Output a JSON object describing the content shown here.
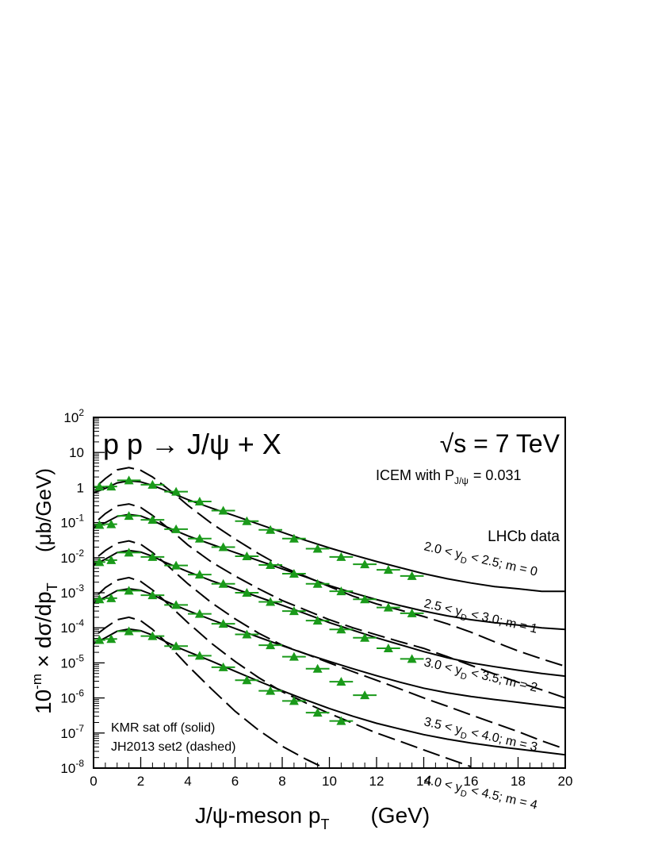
{
  "chart_data": {
    "type": "line",
    "title": "p p → J/ψ + X",
    "energy_label": "√s = 7 TeV",
    "model_label": "ICEM with P",
    "model_sub": "J/ψ",
    "model_value": "= 0.031",
    "data_label": "LHCb data",
    "xlabel": "J/ψ-meson  p",
    "xlabel_sub": "T",
    "xlabel_unit": "(GeV)",
    "ylabel": "10",
    "ylabel_sup": "-m",
    "ylabel_main": " × dσ/dp",
    "ylabel_sub": "T",
    "ylabel_unit": "(μb/GeV)",
    "line_legend": [
      "KMR sat off (solid)",
      "JH2013 set2 (dashed)"
    ],
    "xlim": [
      0,
      20
    ],
    "ylim_log10": [
      -8,
      2
    ],
    "log_y": true,
    "x_ticks": [
      0,
      2,
      4,
      6,
      8,
      10,
      12,
      14,
      16,
      18,
      20
    ],
    "y_tick_labels": [
      {
        "v": 2,
        "main": "10",
        "sup": "2"
      },
      {
        "v": 1,
        "main": "10",
        "sup": ""
      },
      {
        "v": 0,
        "main": "1",
        "sup": ""
      },
      {
        "v": -1,
        "main": "10",
        "sup": "-1"
      },
      {
        "v": -2,
        "main": "10",
        "sup": "-2"
      },
      {
        "v": -3,
        "main": "10",
        "sup": "-3"
      },
      {
        "v": -4,
        "main": "10",
        "sup": "-4"
      },
      {
        "v": -5,
        "main": "10",
        "sup": "-5"
      },
      {
        "v": -6,
        "main": "10",
        "sup": "-6"
      },
      {
        "v": -7,
        "main": "10",
        "sup": "-7"
      },
      {
        "v": -8,
        "main": "10",
        "sup": "-8"
      }
    ],
    "data_points_x": [
      0.25,
      0.75,
      1.5,
      2.5,
      3.5,
      4.5,
      5.5,
      6.5,
      7.5,
      8.5,
      9.5,
      10.5,
      11.5,
      12.5,
      13.5
    ],
    "series": [
      {
        "range_label": {
          "a": "2.0 < y",
          "sub": "D",
          "b": " < 2.5; m = 0"
        },
        "data": [
          1.06,
          1.07,
          1.6,
          1.2,
          0.76,
          0.4,
          0.22,
          0.11,
          0.062,
          0.035,
          0.018,
          0.0105,
          0.0065,
          0.0045,
          0.003
        ],
        "solid": [
          [
            0,
            0.7
          ],
          [
            0.5,
            0.95
          ],
          [
            1,
            1.35
          ],
          [
            1.5,
            1.55
          ],
          [
            2,
            1.45
          ],
          [
            2.5,
            1.15
          ],
          [
            3,
            0.85
          ],
          [
            3.5,
            0.62
          ],
          [
            4,
            0.45
          ],
          [
            5,
            0.26
          ],
          [
            6,
            0.155
          ],
          [
            7,
            0.09
          ],
          [
            8,
            0.053
          ],
          [
            9,
            0.031
          ],
          [
            10,
            0.019
          ],
          [
            11,
            0.012
          ],
          [
            12,
            0.0078
          ],
          [
            13,
            0.0052
          ],
          [
            14,
            0.0035
          ],
          [
            15,
            0.0025
          ],
          [
            16,
            0.0019
          ],
          [
            17,
            0.0015
          ],
          [
            18,
            0.0013
          ],
          [
            19,
            0.0011
          ],
          [
            20,
            0.0011
          ]
        ],
        "dashed": [
          [
            0.2,
            1.2
          ],
          [
            0.5,
            1.8
          ],
          [
            1,
            3.2
          ],
          [
            1.5,
            3.7
          ],
          [
            2,
            3.1
          ],
          [
            2.5,
            2.0
          ],
          [
            3,
            1.1
          ],
          [
            3.5,
            0.6
          ],
          [
            4,
            0.31
          ],
          [
            5,
            0.095
          ],
          [
            6,
            0.034
          ],
          [
            7,
            0.013
          ],
          [
            8,
            0.0055
          ],
          [
            9,
            0.0029
          ],
          [
            10,
            0.0015
          ],
          [
            11,
            0.0008
          ],
          [
            12,
            0.00048
          ],
          [
            13,
            0.00032
          ],
          [
            14,
            0.00021
          ],
          [
            15,
            0.00013
          ],
          [
            16,
            7.5e-05
          ],
          [
            17,
            4e-05
          ],
          [
            18,
            2.2e-05
          ],
          [
            19,
            1.3e-05
          ],
          [
            20,
            8e-06
          ]
        ]
      },
      {
        "range_label": {
          "a": "2.5 < y",
          "sub": "D",
          "b": " < 3.0; m = 1"
        },
        "data": [
          0.086,
          0.09,
          0.155,
          0.12,
          0.065,
          0.035,
          0.02,
          0.011,
          0.0062,
          0.0035,
          0.0018,
          0.0011,
          0.00065,
          0.00038,
          0.00026
        ],
        "solid": [
          [
            0,
            0.07
          ],
          [
            0.5,
            0.1
          ],
          [
            1,
            0.15
          ],
          [
            1.5,
            0.17
          ],
          [
            2,
            0.155
          ],
          [
            2.5,
            0.115
          ],
          [
            3,
            0.08
          ],
          [
            3.5,
            0.058
          ],
          [
            4,
            0.042
          ],
          [
            5,
            0.024
          ],
          [
            6,
            0.014
          ],
          [
            7,
            0.0082
          ],
          [
            8,
            0.0048
          ],
          [
            9,
            0.0028
          ],
          [
            10,
            0.0016
          ],
          [
            11,
            0.00099
          ],
          [
            12,
            0.00064
          ],
          [
            13,
            0.00043
          ],
          [
            14,
            0.0003
          ],
          [
            15,
            0.00022
          ],
          [
            16,
            0.00017
          ],
          [
            17,
            0.00014
          ],
          [
            18,
            0.00012
          ],
          [
            19,
            0.0001
          ],
          [
            20,
            9e-05
          ]
        ],
        "dashed": [
          [
            0.2,
            0.12
          ],
          [
            0.5,
            0.18
          ],
          [
            1,
            0.3
          ],
          [
            1.5,
            0.34
          ],
          [
            2,
            0.27
          ],
          [
            2.5,
            0.16
          ],
          [
            3,
            0.085
          ],
          [
            3.5,
            0.045
          ],
          [
            4,
            0.023
          ],
          [
            5,
            0.0075
          ],
          [
            6,
            0.003
          ],
          [
            7,
            0.0013
          ],
          [
            8,
            0.0006
          ],
          [
            9,
            0.00032
          ],
          [
            10,
            0.00017
          ],
          [
            11,
            0.0001
          ],
          [
            12,
            6.3e-05
          ],
          [
            13,
            4e-05
          ],
          [
            14,
            2.6e-05
          ],
          [
            15,
            1.5e-05
          ],
          [
            16,
            8.5e-06
          ],
          [
            17,
            4.8e-06
          ],
          [
            18,
            2.8e-06
          ],
          [
            19,
            1.7e-06
          ],
          [
            20,
            1e-06
          ]
        ]
      },
      {
        "range_label": {
          "a": "3.0 < y",
          "sub": "D",
          "b": " < 3.5; m = 2"
        },
        "data": [
          0.0075,
          0.0085,
          0.014,
          0.0105,
          0.006,
          0.0033,
          0.0018,
          0.001,
          0.00055,
          0.0003,
          0.00016,
          9e-05,
          5.2e-05,
          2.6e-05,
          1.3e-05
        ],
        "solid": [
          [
            0,
            0.0062
          ],
          [
            0.5,
            0.009
          ],
          [
            1,
            0.014
          ],
          [
            1.5,
            0.016
          ],
          [
            2,
            0.0145
          ],
          [
            2.5,
            0.011
          ],
          [
            3,
            0.0075
          ],
          [
            3.5,
            0.0055
          ],
          [
            4,
            0.004
          ],
          [
            5,
            0.0022
          ],
          [
            6,
            0.0013
          ],
          [
            7,
            0.00075
          ],
          [
            8,
            0.00044
          ],
          [
            9,
            0.00025
          ],
          [
            10,
            0.00014
          ],
          [
            11,
            8.5e-05
          ],
          [
            12,
            5.2e-05
          ],
          [
            13,
            3.3e-05
          ],
          [
            14,
            2.1e-05
          ],
          [
            15,
            1.4e-05
          ],
          [
            16,
            1e-05
          ],
          [
            17,
            7.8e-06
          ],
          [
            18,
            6.2e-06
          ],
          [
            19,
            5e-06
          ],
          [
            20,
            4.2e-06
          ]
        ],
        "dashed": [
          [
            0.2,
            0.011
          ],
          [
            0.5,
            0.016
          ],
          [
            1,
            0.026
          ],
          [
            1.5,
            0.03
          ],
          [
            2,
            0.024
          ],
          [
            2.5,
            0.014
          ],
          [
            3,
            0.0072
          ],
          [
            3.5,
            0.0036
          ],
          [
            4,
            0.0018
          ],
          [
            5,
            0.00052
          ],
          [
            6,
            0.00018
          ],
          [
            7,
            7e-05
          ],
          [
            8,
            3.2e-05
          ],
          [
            9,
            1.8e-05
          ],
          [
            10,
            1e-05
          ],
          [
            11,
            5.6e-06
          ],
          [
            12,
            3.2e-06
          ],
          [
            13,
            1.8e-06
          ],
          [
            14,
            1e-06
          ],
          [
            15,
            5.8e-07
          ],
          [
            16,
            3.3e-07
          ],
          [
            17,
            1.9e-07
          ],
          [
            18,
            1.1e-07
          ],
          [
            19,
            6e-08
          ],
          [
            20,
            3.5e-08
          ]
        ]
      },
      {
        "range_label": {
          "a": "3.5 < y",
          "sub": "D",
          "b": " < 4.0; m = 3"
        },
        "data": [
          0.00065,
          0.0007,
          0.00115,
          0.00085,
          0.00045,
          0.00025,
          0.00013,
          6.5e-05,
          3.2e-05,
          1.5e-05,
          6.8e-06,
          2.9e-06,
          1.2e-06
        ],
        "solid": [
          [
            0,
            0.00052
          ],
          [
            0.5,
            0.00075
          ],
          [
            1,
            0.00115
          ],
          [
            1.5,
            0.0013
          ],
          [
            2,
            0.00118
          ],
          [
            2.5,
            0.00088
          ],
          [
            3,
            0.0006
          ],
          [
            3.5,
            0.00043
          ],
          [
            4,
            0.00031
          ],
          [
            5,
            0.00017
          ],
          [
            6,
            9.55e-05
          ],
          [
            7,
            5.4e-05
          ],
          [
            8,
            3.1e-05
          ],
          [
            9,
            1.8e-05
          ],
          [
            10,
            1.1e-05
          ],
          [
            11,
            6.8e-06
          ],
          [
            12,
            4.3e-06
          ],
          [
            13,
            2.8e-06
          ],
          [
            14,
            1.9e-06
          ],
          [
            15,
            1.4e-06
          ],
          [
            16,
            1.1e-06
          ],
          [
            17,
            9e-07
          ],
          [
            18,
            7.5e-07
          ],
          [
            19,
            6.2e-07
          ],
          [
            20,
            5.2e-07
          ]
        ],
        "dashed": [
          [
            0.2,
            0.0009
          ],
          [
            0.5,
            0.0014
          ],
          [
            1,
            0.0023
          ],
          [
            1.5,
            0.0027
          ],
          [
            2,
            0.0021
          ],
          [
            2.5,
            0.0012
          ],
          [
            3,
            0.0006
          ],
          [
            3.5,
            0.00029
          ],
          [
            4,
            0.00014
          ],
          [
            5,
            3.6e-05
          ],
          [
            6,
            1.1e-05
          ],
          [
            7,
            3.8e-06
          ],
          [
            8,
            1.5e-06
          ],
          [
            9,
            7.2e-07
          ],
          [
            10,
            3.6e-07
          ],
          [
            11,
            1.9e-07
          ],
          [
            12,
            1e-07
          ],
          [
            13,
            5.8e-08
          ],
          [
            14,
            3.3e-08
          ],
          [
            15,
            1.9e-08
          ],
          [
            16,
            1.1e-08
          ]
        ]
      },
      {
        "range_label": {
          "a": "4.0 < y",
          "sub": "D",
          "b": " < 4.5; m = 4"
        },
        "data": [
          4.5e-05,
          4.8e-05,
          8e-05,
          5.8e-05,
          3e-05,
          1.6e-05,
          7.5e-06,
          3.2e-06,
          1.6e-06,
          8.2e-07,
          3.8e-07,
          2.2e-07
        ],
        "solid": [
          [
            0,
            3.5e-05
          ],
          [
            0.5,
            5.2e-05
          ],
          [
            1,
            8e-05
          ],
          [
            1.5,
            9.2e-05
          ],
          [
            2,
            8.3e-05
          ],
          [
            2.5,
            6.2e-05
          ],
          [
            3,
            4.2e-05
          ],
          [
            3.5,
            2.9e-05
          ],
          [
            4,
            2.1e-05
          ],
          [
            5,
            1.12e-05
          ],
          [
            6,
            5.8e-06
          ],
          [
            7,
            3e-06
          ],
          [
            8,
            1.6e-06
          ],
          [
            9,
            8.8e-07
          ],
          [
            10,
            5e-07
          ],
          [
            11,
            3e-07
          ],
          [
            12,
            1.9e-07
          ],
          [
            13,
            1.3e-07
          ],
          [
            14,
            9e-08
          ],
          [
            15,
            6.7e-08
          ],
          [
            16,
            5.2e-08
          ],
          [
            17,
            4.2e-08
          ],
          [
            18,
            3.5e-08
          ],
          [
            19,
            2.9e-08
          ],
          [
            20,
            2.4e-08
          ]
        ],
        "dashed": [
          [
            0.2,
            7e-05
          ],
          [
            0.5,
            0.0001
          ],
          [
            1,
            0.00017
          ],
          [
            1.5,
            0.0002
          ],
          [
            2,
            0.00016
          ],
          [
            2.5,
            9e-05
          ],
          [
            3,
            4.3e-05
          ],
          [
            3.5,
            1.9e-05
          ],
          [
            4,
            8.3e-06
          ],
          [
            5,
            1.8e-06
          ],
          [
            6,
            4.2e-07
          ],
          [
            7,
            1.2e-07
          ],
          [
            8,
            4.2e-08
          ],
          [
            9,
            1.8e-08
          ],
          [
            10,
            8.5e-09
          ]
        ]
      }
    ],
    "colors": {
      "marker": "#1a9a1a",
      "line": "#000000"
    }
  }
}
